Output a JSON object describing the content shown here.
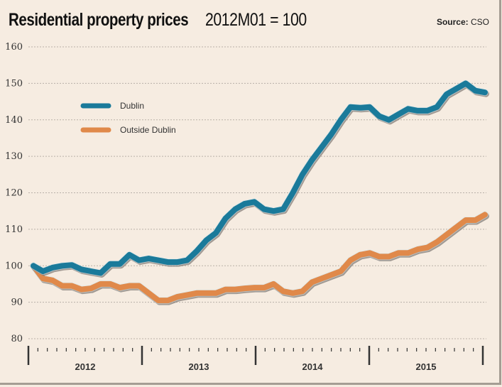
{
  "header": {
    "title_bold": "Residential property prices",
    "title_sub": "2012M01 = 100",
    "source_label": "Source:",
    "source_value": "CSO"
  },
  "colors": {
    "background": "#f6ece1",
    "dublin": "#1a7a9a",
    "outside_dublin": "#e0894a",
    "gridline": "#b9b1a8",
    "axis": "#333333"
  },
  "chart_data": {
    "type": "line",
    "title": "Residential property prices 2012M01 = 100",
    "xlabel": "",
    "ylabel": "",
    "ylim": [
      80,
      160
    ],
    "yticks": [
      80,
      90,
      100,
      110,
      120,
      130,
      140,
      150,
      160
    ],
    "ytick_labels": [
      "80",
      "90",
      "100",
      "110",
      "120",
      "130",
      "140",
      "150",
      "160"
    ],
    "x_groups": [
      "2012",
      "2013",
      "2014",
      "2015"
    ],
    "x_frequency": "monthly",
    "x_start": "2012-01",
    "grid": true,
    "legend_position": "top-left",
    "series": [
      {
        "name": "Dublin",
        "values": [
          100,
          98.5,
          99.5,
          100,
          100.2,
          99,
          98.5,
          98,
          100.5,
          100.5,
          103,
          101.5,
          102,
          101.5,
          101,
          101,
          101.5,
          104,
          107,
          109,
          113,
          115.5,
          117,
          117.5,
          115.5,
          115,
          115.5,
          120,
          125,
          129,
          132.5,
          136,
          140,
          143.5,
          143.3,
          143.5,
          141,
          140,
          141.5,
          143,
          142.5,
          142.5,
          143.5,
          147,
          148.5,
          150,
          148,
          147.5
        ]
      },
      {
        "name": "Outside Dublin",
        "values": [
          100,
          96.5,
          96,
          94.5,
          94.5,
          93.5,
          93.8,
          95,
          95,
          94,
          94.5,
          94.5,
          92.5,
          90.5,
          90.5,
          91.5,
          92,
          92.5,
          92.5,
          92.5,
          93.5,
          93.5,
          93.8,
          94,
          94,
          95,
          93,
          92.5,
          93,
          95.5,
          96.5,
          97.5,
          98.5,
          101.5,
          103,
          103.5,
          102.5,
          102.5,
          103.5,
          103.5,
          104.5,
          105,
          106.5,
          108.5,
          110.5,
          112.5,
          112.5,
          114
        ]
      }
    ]
  }
}
